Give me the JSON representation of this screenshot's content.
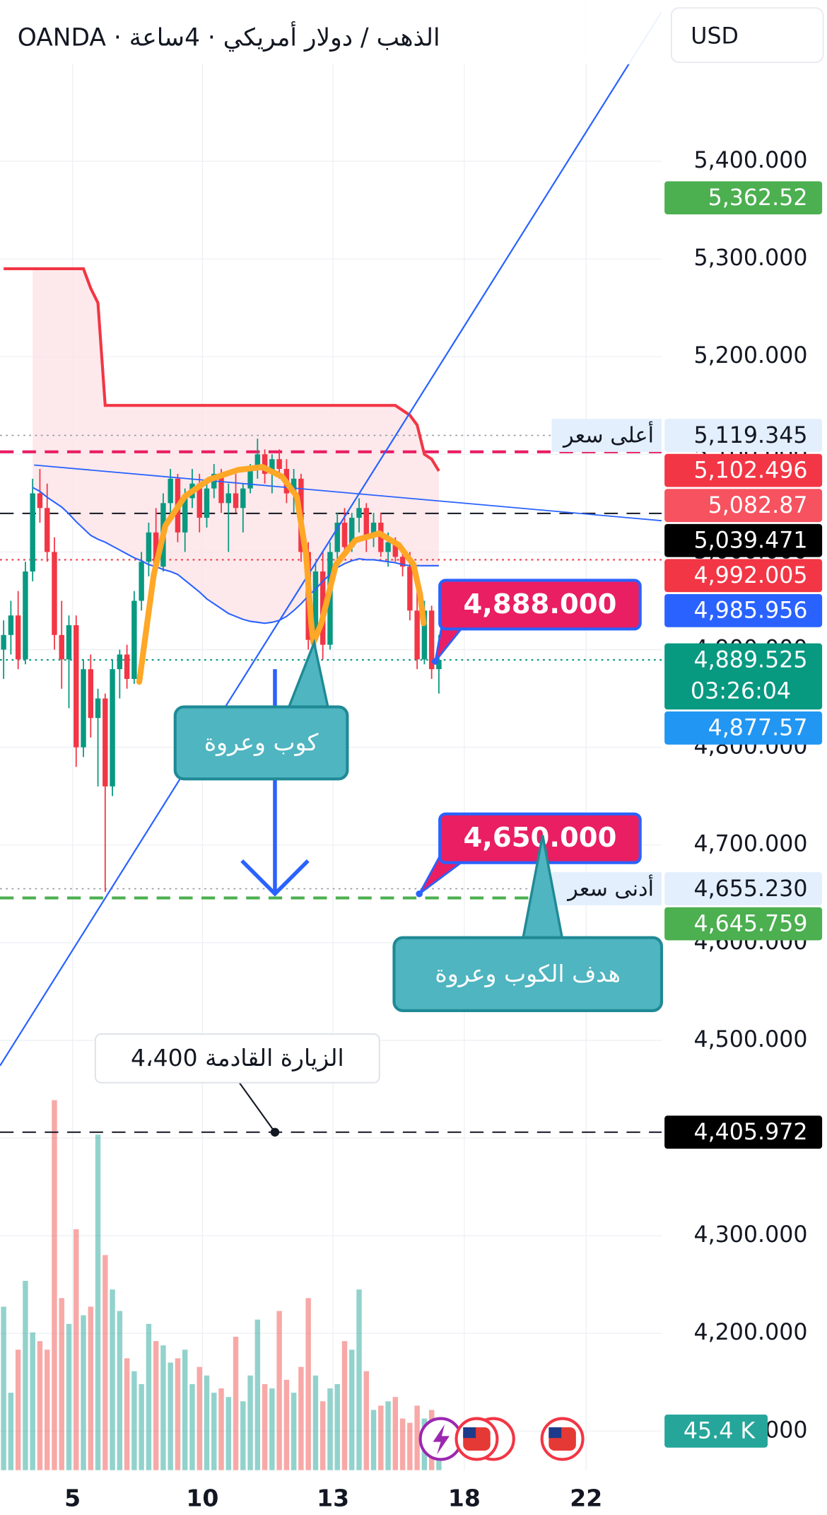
{
  "header": {
    "title": "OANDA · الذهب / دولار أمريكي · 4ساعة",
    "currency": "USD"
  },
  "chart_data": {
    "type": "candlestick",
    "xlim": [
      -0.5,
      90.7
    ],
    "xticks": [
      {
        "value": 9.5,
        "label": "5"
      },
      {
        "value": 27.4,
        "label": "10"
      },
      {
        "value": 45.4,
        "label": "13"
      },
      {
        "value": 63.5,
        "label": "18"
      },
      {
        "value": 80.3,
        "label": "22"
      }
    ],
    "ylim": [
      4060,
      5565
    ],
    "yticks": [
      {
        "value": 5400,
        "label": "5,400.000"
      },
      {
        "value": 5300,
        "label": "5,300.000"
      },
      {
        "value": 5200,
        "label": "5,200.000"
      },
      {
        "value": 5100,
        "label": "5,100.000"
      },
      {
        "value": 5000,
        "label": "5,000.000"
      },
      {
        "value": 4900,
        "label": "4,900.000"
      },
      {
        "value": 4800,
        "label": "4,800.000"
      },
      {
        "value": 4700,
        "label": "4,700.000"
      },
      {
        "value": 4600,
        "label": "4,600.000"
      },
      {
        "value": 4500,
        "label": "4,500.000"
      },
      {
        "value": 4400,
        "label": "4,400.000"
      },
      {
        "value": 4300,
        "label": "4,300.000"
      },
      {
        "value": 4200,
        "label": "4,200.000"
      },
      {
        "value": 4100,
        "label": "4,100.000"
      }
    ],
    "grid": true,
    "up_color": "#089981",
    "down_color": "#f23645",
    "open": [
      4900,
      4915,
      4935,
      4890,
      4980,
      5060,
      5045,
      5000,
      4915,
      4890,
      4925,
      4800,
      4880,
      4830,
      4850,
      4760,
      4880,
      4895,
      4870,
      4950,
      4990,
      5020,
      4985,
      5050,
      5075,
      5020,
      5055,
      5070,
      5035,
      5065,
      5080,
      5050,
      5060,
      5045,
      5065,
      5085,
      5100,
      5080,
      5095,
      5085,
      5060,
      5075,
      5000,
      4910,
      4980,
      4905,
      5000,
      5030,
      5005,
      5035,
      5045,
      5015,
      5030,
      5000,
      5010,
      4995,
      4985,
      4940,
      4890,
      4940,
      4880
    ],
    "high": [
      4930,
      4950,
      4960,
      4990,
      5075,
      5085,
      5070,
      5015,
      4950,
      4935,
      4935,
      4890,
      4895,
      4860,
      4855,
      4890,
      4900,
      4905,
      4960,
      5000,
      5030,
      5045,
      5060,
      5085,
      5080,
      5065,
      5085,
      5080,
      5075,
      5090,
      5085,
      5070,
      5080,
      5070,
      5090,
      5116,
      5105,
      5100,
      5105,
      5095,
      5085,
      5080,
      5010,
      4990,
      5000,
      5010,
      5040,
      5045,
      5040,
      5055,
      5050,
      5040,
      5040,
      5020,
      5015,
      5000,
      5000,
      4960,
      4950,
      4945,
      4915
    ],
    "low": [
      4870,
      4895,
      4880,
      4885,
      4970,
      5030,
      4990,
      4900,
      4860,
      4840,
      4780,
      4790,
      4810,
      4760,
      4652,
      4750,
      4850,
      4860,
      4865,
      4940,
      4975,
      4975,
      4980,
      5040,
      5010,
      5000,
      5045,
      5020,
      5025,
      5055,
      5040,
      5000,
      5040,
      5020,
      5060,
      5075,
      5070,
      5060,
      5075,
      5050,
      5040,
      4990,
      4900,
      4890,
      4890,
      4900,
      4985,
      4995,
      5000,
      5020,
      5000,
      5005,
      4995,
      4985,
      4990,
      4975,
      4930,
      4880,
      4885,
      4870,
      4855
    ],
    "close": [
      4915,
      4935,
      4890,
      4980,
      5060,
      5045,
      5000,
      4915,
      4890,
      4925,
      4800,
      4880,
      4830,
      4850,
      4760,
      4880,
      4895,
      4870,
      4950,
      4990,
      5020,
      4985,
      5050,
      5075,
      5020,
      5055,
      5070,
      5035,
      5065,
      5080,
      5050,
      5060,
      5045,
      5065,
      5085,
      5100,
      5080,
      5095,
      5085,
      5060,
      5075,
      5000,
      4910,
      4980,
      4905,
      5000,
      5030,
      5005,
      5035,
      5045,
      5015,
      5030,
      5000,
      5010,
      4995,
      4985,
      4940,
      4890,
      4940,
      4880,
      4889.525
    ],
    "volume": {
      "up_color": "#26a69a",
      "down_color": "#ef5350",
      "ylim": [
        0,
        430
      ],
      "values": [
        190,
        90,
        140,
        220,
        160,
        150,
        140,
        430,
        200,
        170,
        280,
        180,
        190,
        390,
        250,
        210,
        185,
        130,
        115,
        100,
        170,
        150,
        145,
        125,
        130,
        140,
        100,
        120,
        110,
        90,
        95,
        85,
        155,
        80,
        110,
        175,
        100,
        95,
        185,
        105,
        90,
        120,
        200,
        110,
        80,
        95,
        100,
        150,
        140,
        210,
        115,
        70,
        75,
        80,
        85,
        60,
        55,
        75,
        60,
        70,
        45.4
      ],
      "last_label": {
        "value": 45.4,
        "label": "45.4 K"
      },
      "label_color": "#26a69a"
    },
    "moving_average": {
      "color": "#2962ff",
      "values": [
        null,
        null,
        null,
        null,
        5066,
        5062,
        5056,
        5051,
        5046,
        5039,
        5031,
        5024,
        5017,
        5013,
        5010,
        5006,
        5002,
        4998,
        4994,
        4991,
        4987,
        4985,
        4982,
        4980,
        4977,
        4971,
        4965,
        4959,
        4952,
        4947,
        4942,
        4937,
        4934,
        4931,
        4929,
        4928,
        4927,
        4928,
        4930,
        4934,
        4940,
        4947,
        4955,
        4962,
        4970,
        4977,
        4984,
        4988,
        4991,
        4993,
        4992,
        4992,
        4991,
        4990,
        4989,
        4987,
        4986,
        4986,
        4985.956,
        4985.956,
        4985.956
      ]
    },
    "band_upper": {
      "color": "#f23645",
      "fill": "#fde3e6",
      "values": [
        5290,
        5290,
        5290,
        5290,
        5290,
        5290,
        5290,
        5290,
        5290,
        5290,
        5290,
        5290,
        5270,
        5255,
        5150,
        5150,
        5150,
        5150,
        5150,
        5150,
        5150,
        5150,
        5150,
        5150,
        5150,
        5150,
        5150,
        5150,
        5150,
        5150,
        5150,
        5150,
        5150,
        5150,
        5150,
        5150,
        5150,
        5150,
        5150,
        5150,
        5150,
        5150,
        5150,
        5150,
        5150,
        5150,
        5150,
        5150,
        5150,
        5150,
        5150,
        5150,
        5150,
        5150,
        5150,
        5145,
        5140,
        5130,
        5100,
        5095,
        5082.87
      ]
    },
    "trendlines": [
      {
        "color": "#2962ff",
        "width": 1.6,
        "x": [
          -0.5,
          90.7
        ],
        "y": [
          4474,
          5553
        ]
      },
      {
        "color": "#2962ff",
        "width": 1.3,
        "x": [
          4.2,
          90.7
        ],
        "y": [
          5089,
          5032
        ]
      }
    ],
    "cup_handle": {
      "color": "#ffa726",
      "x": [
        18.7,
        19.6,
        20.7,
        22.3,
        25,
        28.3,
        32.3,
        35.7,
        38.4,
        40.4,
        41.7,
        42.4,
        42.7,
        43.8,
        45.8,
        48.5,
        51.8,
        54.5,
        56.5,
        57.4,
        57.9
      ],
      "y": [
        4867,
        4917,
        4977,
        5027,
        5057,
        5074,
        5084,
        5087,
        5077,
        5057,
        4997,
        4927,
        4907,
        4927,
        4987,
        5012,
        5019,
        5007,
        4987,
        4957,
        4927
      ]
    },
    "target_arrow": {
      "color": "#2962ff",
      "x": 37.4,
      "from": 4880,
      "to": 4650
    },
    "price_labels": [
      {
        "value": 5362.52,
        "label": "5,362.52",
        "color": "#4caf50"
      },
      {
        "value": 5119.345,
        "label": "5,119.345",
        "color": "#e3effd",
        "text_color": "#131722",
        "tag": "أعلى سعر",
        "line": "dotted",
        "line_color": "#9598a1",
        "line_width": 1.2
      },
      {
        "value": 5102.496,
        "label": "5,102.496",
        "color": "#f23645",
        "line": "dashed",
        "line_color": "#e91e63",
        "line_width": 3
      },
      {
        "value": 5082.87,
        "label": "5,082.87",
        "color": "#f7525f"
      },
      {
        "value": 5039.471,
        "label": "5,039.471",
        "color": "#000000",
        "line": "dashed",
        "line_color": "#131722",
        "line_width": 1.5
      },
      {
        "value": 4992.005,
        "label": "4,992.005",
        "color": "#f23645",
        "line": "dotted",
        "line_color": "#f23645",
        "line_width": 1.5
      },
      {
        "value": 4985.956,
        "label": "4,985.956",
        "color": "#2962ff"
      },
      {
        "value": 4889.525,
        "label": "4,889.525",
        "color": "#089981",
        "countdown": "03:26:04",
        "line": "dotted",
        "line_color": "#089981",
        "line_width": 1.5
      },
      {
        "value": 4877.57,
        "label": "4,877.57",
        "color": "#2196f3"
      },
      {
        "value": 4655.23,
        "label": "4,655.230",
        "color": "#e3effd",
        "text_color": "#131722",
        "tag": "أدنى سعر",
        "line": "dotted",
        "line_color": "#9598a1",
        "line_width": 1.2
      },
      {
        "value": 4645.759,
        "label": "4,645.759",
        "color": "#4caf50",
        "line": "dashed",
        "line_color": "#4caf50",
        "line_width": 3
      },
      {
        "value": 4405.972,
        "label": "4,405.972",
        "color": "#000000",
        "line": "dashed",
        "line_color": "#131722",
        "line_width": 1.5
      }
    ],
    "price_callouts": [
      {
        "value": 4888,
        "label": "4,888.000",
        "x": 59.5,
        "color": "#e91e63",
        "border": "#2962ff"
      },
      {
        "value": 4650,
        "label": "4,650.000",
        "x": 57.3,
        "color": "#e91e63",
        "border": "#2962ff"
      }
    ],
    "annotations": [
      {
        "text": "كوب وعروة",
        "color": "#4fb5c0",
        "border": "#1f8a96",
        "x": 42.8,
        "y": 4907
      },
      {
        "text": "هدف الكوب وعروة",
        "color": "#4fb5c0",
        "border": "#1f8a96",
        "x": 74.3,
        "y": 4710
      },
      {
        "text": "الزيارة القادمة 4،400",
        "color": "#ffffff",
        "border": "#e0e3eb",
        "x": 37.4,
        "y": 4405.972
      }
    ]
  }
}
